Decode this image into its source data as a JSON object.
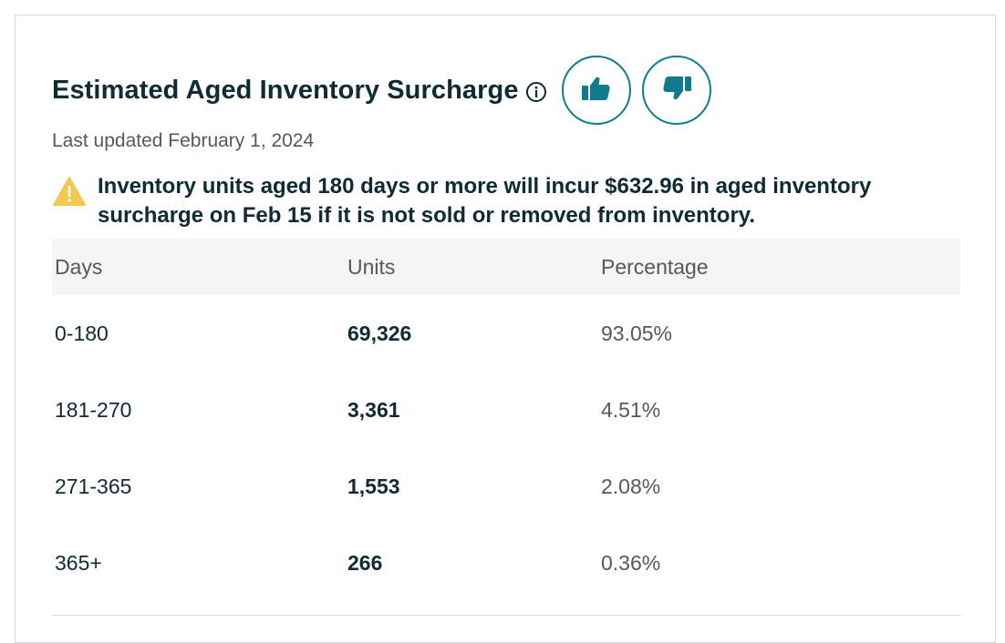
{
  "header": {
    "title": "Estimated Aged Inventory Surcharge",
    "info_icon": "info-circle-icon",
    "thumbs_up_icon": "thumbs-up-icon",
    "thumbs_down_icon": "thumbs-down-icon"
  },
  "last_updated": "Last updated February 1, 2024",
  "alert": {
    "icon": "warning-triangle-icon",
    "line1": "Inventory units aged 180 days or more will incur $632.96 in aged inventory",
    "line2": "surcharge on Feb 15 if it is not sold or removed from inventory."
  },
  "table": {
    "headers": [
      "Days",
      "Units",
      "Percentage"
    ],
    "rows": [
      {
        "days": "0-180",
        "units": "69,326",
        "percentage": "93.05%"
      },
      {
        "days": "181-270",
        "units": "3,361",
        "percentage": "4.51%"
      },
      {
        "days": "271-365",
        "units": "1,553",
        "percentage": "2.08%"
      },
      {
        "days": "365+",
        "units": "266",
        "percentage": "0.36%"
      }
    ]
  },
  "colors": {
    "accent": "#0f7b8c",
    "title": "#0f2b33",
    "muted": "#565959",
    "warning": "#f2c94c",
    "header_bg": "#f5f5f5"
  }
}
